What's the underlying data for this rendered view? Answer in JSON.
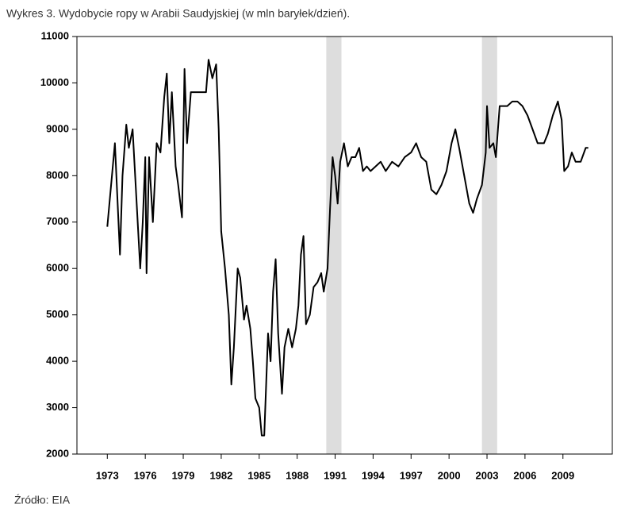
{
  "chart_data": {
    "type": "line",
    "title": "Wykres 3. Wydobycie ropy w Arabii Saudyjskiej (w mln baryłek/dzień).",
    "source": "Źródło: EIA",
    "x": [
      1973.0,
      1973.3,
      1973.6,
      1973.8,
      1974.0,
      1974.2,
      1974.5,
      1974.7,
      1975.0,
      1975.3,
      1975.6,
      1975.8,
      1976.0,
      1976.1,
      1976.3,
      1976.6,
      1976.9,
      1977.2,
      1977.5,
      1977.7,
      1977.9,
      1978.1,
      1978.4,
      1978.6,
      1978.9,
      1979.1,
      1979.3,
      1979.6,
      1980.0,
      1980.8,
      1981.0,
      1981.3,
      1981.6,
      1981.8,
      1982.0,
      1982.3,
      1982.6,
      1982.8,
      1983.0,
      1983.3,
      1983.5,
      1983.8,
      1984.0,
      1984.3,
      1984.5,
      1984.7,
      1985.0,
      1985.2,
      1985.4,
      1985.7,
      1985.9,
      1986.1,
      1986.3,
      1986.5,
      1986.8,
      1987.0,
      1987.3,
      1987.6,
      1987.9,
      1988.1,
      1988.3,
      1988.5,
      1988.7,
      1989.0,
      1989.3,
      1989.6,
      1989.9,
      1990.1,
      1990.4,
      1990.6,
      1990.8,
      1991.0,
      1991.2,
      1991.4,
      1991.7,
      1992.0,
      1992.3,
      1992.6,
      1992.9,
      1993.2,
      1993.5,
      1993.8,
      1994.2,
      1994.6,
      1995.0,
      1995.5,
      1996.0,
      1996.5,
      1997.0,
      1997.4,
      1997.8,
      1998.2,
      1998.6,
      1999.0,
      1999.4,
      1999.8,
      2000.2,
      2000.5,
      2000.8,
      2001.2,
      2001.6,
      2001.9,
      2002.2,
      2002.6,
      2002.9,
      2003.0,
      2003.2,
      2003.5,
      2003.7,
      2004.0,
      2004.6,
      2005.0,
      2005.4,
      2005.8,
      2006.2,
      2006.6,
      2007.0,
      2007.5,
      2007.8,
      2008.2,
      2008.6,
      2008.9,
      2009.1,
      2009.4,
      2009.7,
      2010.0,
      2010.4,
      2010.8,
      2011.0
    ],
    "values": [
      6900,
      7800,
      8700,
      7500,
      6300,
      8000,
      9100,
      8600,
      9000,
      7500,
      6000,
      7000,
      8400,
      5900,
      8400,
      7000,
      8700,
      8500,
      9700,
      10200,
      8700,
      9800,
      8200,
      7800,
      7100,
      10300,
      8700,
      9800,
      9800,
      9800,
      10500,
      10100,
      10400,
      9000,
      6800,
      6000,
      5000,
      3500,
      4300,
      6000,
      5800,
      4900,
      5200,
      4700,
      4000,
      3200,
      3000,
      2400,
      2400,
      4600,
      4000,
      5500,
      6200,
      4600,
      3300,
      4300,
      4700,
      4300,
      4700,
      5200,
      6300,
      6700,
      4800,
      5000,
      5600,
      5700,
      5900,
      5500,
      6000,
      7300,
      8400,
      8000,
      7400,
      8300,
      8700,
      8200,
      8400,
      8400,
      8600,
      8100,
      8200,
      8100,
      8200,
      8300,
      8100,
      8300,
      8200,
      8400,
      8500,
      8700,
      8400,
      8300,
      7700,
      7600,
      7800,
      8100,
      8700,
      9000,
      8600,
      8000,
      7400,
      7200,
      7500,
      7800,
      8500,
      9500,
      8600,
      8700,
      8400,
      9500,
      9500,
      9600,
      9600,
      9500,
      9300,
      9000,
      8700,
      8700,
      8900,
      9300,
      9600,
      9200,
      8100,
      8200,
      8500,
      8300,
      8300,
      8600,
      8600
    ],
    "color": "#000000",
    "shaded_periods": [
      [
        1990.3,
        1991.5
      ],
      [
        2002.6,
        2003.8
      ]
    ],
    "shade_color": "#dddddd",
    "xlim": [
      1970.6,
      2012.9
    ],
    "xticks": [
      1973,
      1976,
      1979,
      1982,
      1985,
      1988,
      1991,
      1994,
      1997,
      2000,
      2003,
      2006,
      2009
    ],
    "ylim": [
      2000,
      11000
    ],
    "yticks": [
      2000,
      3000,
      4000,
      5000,
      6000,
      7000,
      8000,
      9000,
      10000,
      11000
    ]
  }
}
